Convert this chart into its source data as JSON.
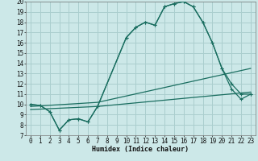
{
  "xlabel": "Humidex (Indice chaleur)",
  "background_color": "#cce8e8",
  "line_color": "#1a6e60",
  "grid_color": "#aacece",
  "xlim": [
    -0.5,
    23.5
  ],
  "ylim": [
    7,
    20
  ],
  "xticks": [
    0,
    1,
    2,
    3,
    4,
    5,
    6,
    7,
    8,
    9,
    10,
    11,
    12,
    13,
    14,
    15,
    16,
    17,
    18,
    19,
    20,
    21,
    22,
    23
  ],
  "yticks": [
    7,
    8,
    9,
    10,
    11,
    12,
    13,
    14,
    15,
    16,
    17,
    18,
    19,
    20
  ],
  "line1_x": [
    0,
    1,
    2,
    3,
    4,
    5,
    6,
    7,
    10,
    11,
    12,
    13,
    14,
    15,
    16,
    17,
    18,
    19,
    20,
    21,
    22,
    23
  ],
  "line1_y": [
    10,
    9.9,
    9.3,
    7.5,
    8.5,
    8.6,
    8.3,
    9.8,
    16.5,
    17.5,
    18,
    17.7,
    19.5,
    19.8,
    20,
    19.5,
    18,
    16,
    13.5,
    12,
    11,
    11
  ],
  "line2_x": [
    0,
    1,
    2,
    3,
    4,
    5,
    6,
    7,
    10,
    11,
    12,
    13,
    14,
    15,
    16,
    17,
    18,
    19,
    20,
    21,
    22,
    23
  ],
  "line2_y": [
    10,
    9.9,
    9.3,
    7.5,
    8.5,
    8.6,
    8.3,
    9.8,
    16.5,
    17.5,
    18,
    17.7,
    19.5,
    19.8,
    20,
    19.5,
    18,
    16,
    13.5,
    11.5,
    10.5,
    11
  ],
  "line3_x": [
    0,
    7,
    23
  ],
  "line3_y": [
    9.8,
    10.2,
    13.5
  ],
  "line4_x": [
    0,
    7,
    23
  ],
  "line4_y": [
    9.5,
    9.8,
    11.2
  ]
}
